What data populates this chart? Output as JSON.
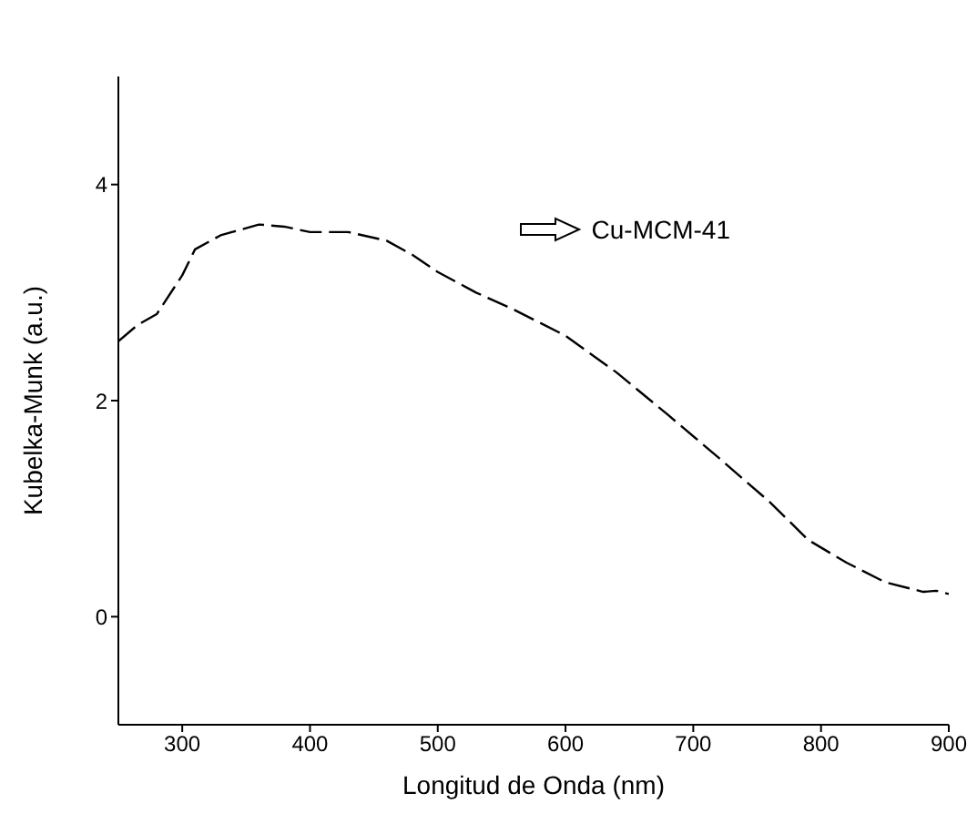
{
  "chart_data": {
    "type": "line",
    "xlabel": "Longitud de Onda (nm)",
    "ylabel": "Kubelka-Munk (a.u.)",
    "xlim": [
      250,
      900
    ],
    "xticks": [
      300,
      400,
      500,
      600,
      700,
      800,
      900
    ],
    "ylim": [
      -1,
      5
    ],
    "yticks": [
      0,
      2,
      4
    ],
    "grid": false,
    "legend": "top right",
    "marker": "none",
    "line_style": "dashed",
    "series": [
      {
        "name": "Cu-MCM-41",
        "color": "#000000",
        "x": [
          250,
          265,
          280,
          300,
          310,
          330,
          360,
          380,
          400,
          430,
          460,
          480,
          500,
          530,
          560,
          600,
          640,
          680,
          720,
          760,
          790,
          820,
          850,
          870,
          880,
          890,
          900
        ],
        "values": [
          2.55,
          2.7,
          2.8,
          3.16,
          3.4,
          3.53,
          3.63,
          3.61,
          3.56,
          3.56,
          3.48,
          3.35,
          3.19,
          3.0,
          2.84,
          2.6,
          2.26,
          1.87,
          1.47,
          1.06,
          0.71,
          0.5,
          0.32,
          0.26,
          0.23,
          0.24,
          0.21
        ]
      }
    ]
  }
}
